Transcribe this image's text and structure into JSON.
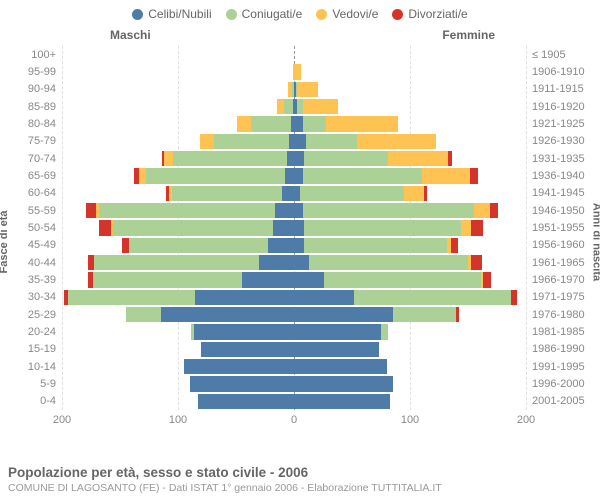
{
  "type": "population_pyramid",
  "legend": [
    {
      "label": "Celibi/Nubili",
      "color": "#4f7ba8"
    },
    {
      "label": "Coniugati/e",
      "color": "#abd197"
    },
    {
      "label": "Vedovi/e",
      "color": "#ffc354"
    },
    {
      "label": "Divorziati/e",
      "color": "#d4342a"
    }
  ],
  "header_male": "Maschi",
  "header_female": "Femmine",
  "y_left_title": "Fasce di età",
  "y_right_title": "Anni di nascita",
  "background_color": "#ffffff",
  "grid_color": "#e0e0e0",
  "center_line_color": "#999999",
  "bar_separator_dash": true,
  "title": "Popolazione per età, sesso e stato civile - 2006",
  "subtitle": "COMUNE DI LAGOSANTO (FE) - Dati ISTAT 1° gennaio 2006 - Elaborazione TUTTITALIA.IT",
  "title_fontsize_pt": 13,
  "subtitle_fontsize_pt": 10,
  "label_fontsize_pt": 11,
  "label_color": "#888888",
  "x_max": 200,
  "x_ticks": [
    200,
    100,
    0,
    100,
    200
  ],
  "age_bands": [
    {
      "age": "0-4",
      "birth": "2001-2005",
      "m": {
        "s": 83,
        "c": 0,
        "w": 0,
        "d": 0
      },
      "f": {
        "s": 83,
        "c": 0,
        "w": 0,
        "d": 0
      }
    },
    {
      "age": "5-9",
      "birth": "1996-2000",
      "m": {
        "s": 90,
        "c": 0,
        "w": 0,
        "d": 0
      },
      "f": {
        "s": 85,
        "c": 0,
        "w": 0,
        "d": 0
      }
    },
    {
      "age": "10-14",
      "birth": "1991-1995",
      "m": {
        "s": 95,
        "c": 0,
        "w": 0,
        "d": 0
      },
      "f": {
        "s": 80,
        "c": 0,
        "w": 0,
        "d": 0
      }
    },
    {
      "age": "15-19",
      "birth": "1986-1990",
      "m": {
        "s": 80,
        "c": 0,
        "w": 0,
        "d": 0
      },
      "f": {
        "s": 73,
        "c": 0,
        "w": 0,
        "d": 0
      }
    },
    {
      "age": "20-24",
      "birth": "1981-1985",
      "m": {
        "s": 86,
        "c": 3,
        "w": 0,
        "d": 0
      },
      "f": {
        "s": 75,
        "c": 6,
        "w": 0,
        "d": 0
      }
    },
    {
      "age": "25-29",
      "birth": "1976-1980",
      "m": {
        "s": 115,
        "c": 30,
        "w": 0,
        "d": 0
      },
      "f": {
        "s": 85,
        "c": 55,
        "w": 0,
        "d": 2
      }
    },
    {
      "age": "30-34",
      "birth": "1971-1975",
      "m": {
        "s": 85,
        "c": 110,
        "w": 0,
        "d": 3
      },
      "f": {
        "s": 52,
        "c": 135,
        "w": 0,
        "d": 5
      }
    },
    {
      "age": "35-39",
      "birth": "1966-1970",
      "m": {
        "s": 45,
        "c": 128,
        "w": 0,
        "d": 5
      },
      "f": {
        "s": 26,
        "c": 135,
        "w": 2,
        "d": 7
      }
    },
    {
      "age": "40-44",
      "birth": "1961-1965",
      "m": {
        "s": 30,
        "c": 142,
        "w": 0,
        "d": 6
      },
      "f": {
        "s": 13,
        "c": 137,
        "w": 3,
        "d": 9
      }
    },
    {
      "age": "45-49",
      "birth": "1956-1960",
      "m": {
        "s": 22,
        "c": 120,
        "w": 0,
        "d": 6
      },
      "f": {
        "s": 9,
        "c": 123,
        "w": 3,
        "d": 6
      }
    },
    {
      "age": "50-54",
      "birth": "1951-1955",
      "m": {
        "s": 18,
        "c": 138,
        "w": 2,
        "d": 10
      },
      "f": {
        "s": 9,
        "c": 135,
        "w": 9,
        "d": 10
      }
    },
    {
      "age": "55-59",
      "birth": "1946-1950",
      "m": {
        "s": 16,
        "c": 152,
        "w": 3,
        "d": 8
      },
      "f": {
        "s": 8,
        "c": 147,
        "w": 14,
        "d": 7
      }
    },
    {
      "age": "60-64",
      "birth": "1941-1945",
      "m": {
        "s": 10,
        "c": 95,
        "w": 3,
        "d": 2
      },
      "f": {
        "s": 5,
        "c": 90,
        "w": 17,
        "d": 3
      }
    },
    {
      "age": "65-69",
      "birth": "1936-1940",
      "m": {
        "s": 8,
        "c": 120,
        "w": 6,
        "d": 4
      },
      "f": {
        "s": 8,
        "c": 102,
        "w": 42,
        "d": 7
      }
    },
    {
      "age": "70-74",
      "birth": "1931-1935",
      "m": {
        "s": 6,
        "c": 98,
        "w": 8,
        "d": 2
      },
      "f": {
        "s": 9,
        "c": 72,
        "w": 52,
        "d": 3
      }
    },
    {
      "age": "75-79",
      "birth": "1926-1930",
      "m": {
        "s": 4,
        "c": 65,
        "w": 12,
        "d": 0
      },
      "f": {
        "s": 10,
        "c": 44,
        "w": 68,
        "d": 0
      }
    },
    {
      "age": "80-84",
      "birth": "1921-1925",
      "m": {
        "s": 3,
        "c": 34,
        "w": 12,
        "d": 0
      },
      "f": {
        "s": 8,
        "c": 20,
        "w": 62,
        "d": 0
      }
    },
    {
      "age": "85-89",
      "birth": "1916-1920",
      "m": {
        "s": 1,
        "c": 8,
        "w": 6,
        "d": 0
      },
      "f": {
        "s": 3,
        "c": 5,
        "w": 30,
        "d": 0
      }
    },
    {
      "age": "90-94",
      "birth": "1911-1915",
      "m": {
        "s": 0,
        "c": 2,
        "w": 3,
        "d": 0
      },
      "f": {
        "s": 2,
        "c": 1,
        "w": 18,
        "d": 0
      }
    },
    {
      "age": "95-99",
      "birth": "1906-1910",
      "m": {
        "s": 0,
        "c": 0,
        "w": 1,
        "d": 0
      },
      "f": {
        "s": 0,
        "c": 0,
        "w": 6,
        "d": 0
      }
    },
    {
      "age": "100+",
      "birth": "≤ 1905",
      "m": {
        "s": 0,
        "c": 0,
        "w": 0,
        "d": 0
      },
      "f": {
        "s": 0,
        "c": 0,
        "w": 0,
        "d": 0
      }
    }
  ]
}
